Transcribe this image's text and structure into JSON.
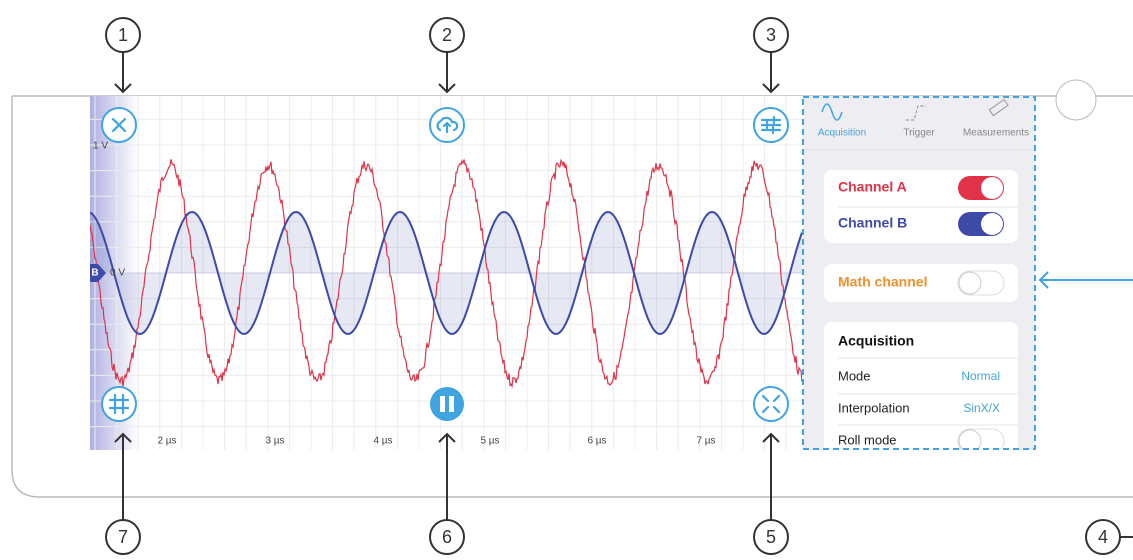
{
  "callouts": [
    "1",
    "2",
    "3",
    "4",
    "5",
    "6",
    "7"
  ],
  "plot": {
    "y_labels": [
      "1 V",
      "0 V"
    ],
    "channel_marker": "B",
    "x_labels": [
      "2 µs",
      "3 µs",
      "4 µs",
      "5 µs",
      "6 µs",
      "7 µs"
    ]
  },
  "panel": {
    "tabs": [
      "Acquisition",
      "Trigger",
      "Measurements"
    ],
    "channels": [
      "Channel A",
      "Channel B"
    ],
    "math": "Math channel",
    "acquisition": {
      "title": "Acquisition",
      "rows": [
        [
          "Mode",
          "Normal"
        ],
        [
          "Interpolation",
          "SinX/X"
        ],
        [
          "Roll mode"
        ]
      ]
    }
  }
}
